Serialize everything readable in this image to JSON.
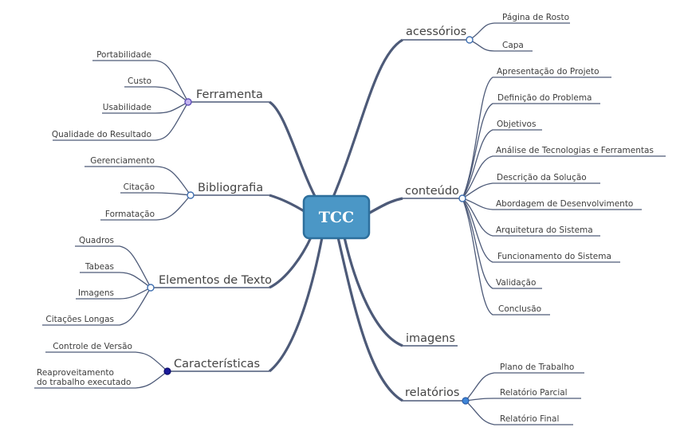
{
  "root": {
    "label": "TCC"
  },
  "branches": [
    {
      "label": "acessórios",
      "children": [
        "Página de Rosto",
        "Capa"
      ]
    },
    {
      "label": "conteúdo",
      "children": [
        "Apresentação do Projeto",
        "Definição do Problema",
        "Objetivos",
        "Análise de Tecnologias e Ferramentas",
        "Descrição da Solução",
        "Abordagem de Desenvolvimento",
        "Arquitetura do Sistema",
        "Funcionamento do Sistema",
        "Validação",
        "Conclusão"
      ]
    },
    {
      "label": "imagens",
      "children": []
    },
    {
      "label": "relatórios",
      "children": [
        "Plano de Trabalho",
        "Relatório Parcial",
        "Relatório Final"
      ]
    },
    {
      "label": "Ferramenta",
      "children": [
        "Portabilidade",
        "Custo",
        "Usabilidade",
        "Qualidade do Resultado"
      ]
    },
    {
      "label": "Bibliografia",
      "children": [
        "Gerenciamento",
        "Citação",
        "Formatação"
      ]
    },
    {
      "label": "Elementos de Texto",
      "children": [
        "Quadros",
        "Tabeas",
        "Imagens",
        "Citações Longas"
      ]
    },
    {
      "label": "Características",
      "children": [
        "Controle de Versão",
        {
          "line1": "Reaproveitamento",
          "line2": "do trabalho executado"
        }
      ]
    }
  ],
  "colors": {
    "root_fill": "#4b97c6",
    "root_border": "#2d6f9c",
    "connector": "#4d5a78",
    "node_ferramenta": "#c3b4f0",
    "node_relatorios": "#3f86d8",
    "node_caracteristicas": "#1a1a9a"
  }
}
